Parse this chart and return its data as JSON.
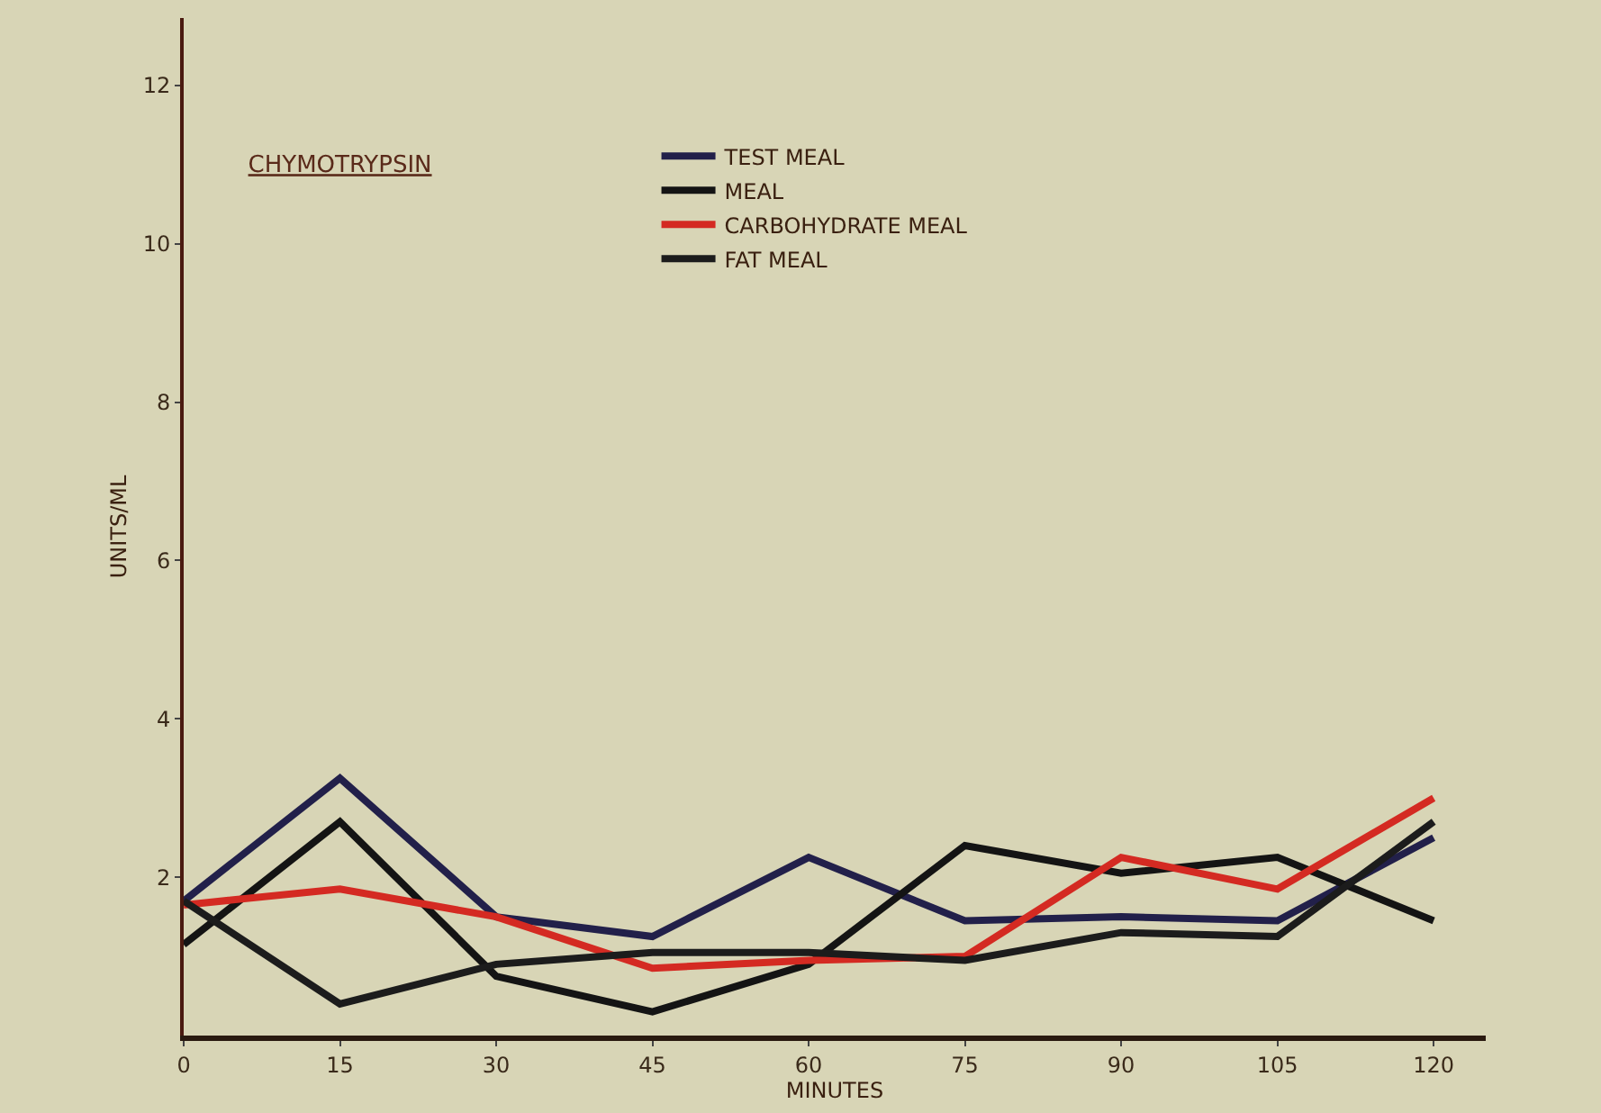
{
  "chart_data": {
    "type": "line",
    "title": "CHYMOTRYPSIN",
    "xlabel": "MINUTES",
    "ylabel": "UNITS/ML",
    "x": [
      0,
      15,
      30,
      45,
      60,
      75,
      90,
      105,
      120
    ],
    "series": [
      {
        "name": "TEST MEAL",
        "color": "#22204a",
        "values": [
          1.7,
          3.25,
          1.5,
          1.25,
          2.25,
          1.45,
          1.5,
          1.45,
          2.5
        ]
      },
      {
        "name": "MEAL",
        "color": "#141414",
        "values": [
          1.15,
          2.7,
          0.75,
          0.3,
          0.9,
          2.4,
          2.05,
          2.25,
          1.45
        ]
      },
      {
        "name": "CARBOHYDRATE MEAL",
        "color": "#d42a22",
        "values": [
          1.65,
          1.85,
          1.5,
          0.85,
          0.95,
          1.0,
          2.25,
          1.85,
          3.0
        ]
      },
      {
        "name": "FAT MEAL",
        "color": "#1c1c1c",
        "values": [
          1.7,
          0.4,
          0.9,
          1.05,
          1.05,
          0.95,
          1.3,
          1.25,
          2.7
        ]
      }
    ],
    "xlim": [
      0,
      125
    ],
    "ylim": [
      0,
      12.85
    ],
    "xticks": [
      0,
      15,
      30,
      45,
      60,
      75,
      90,
      105,
      120
    ],
    "yticks": [
      2,
      4,
      6,
      8,
      10,
      12
    ],
    "grid": false,
    "legend": "top",
    "marker": "none",
    "line_style": "solid"
  }
}
